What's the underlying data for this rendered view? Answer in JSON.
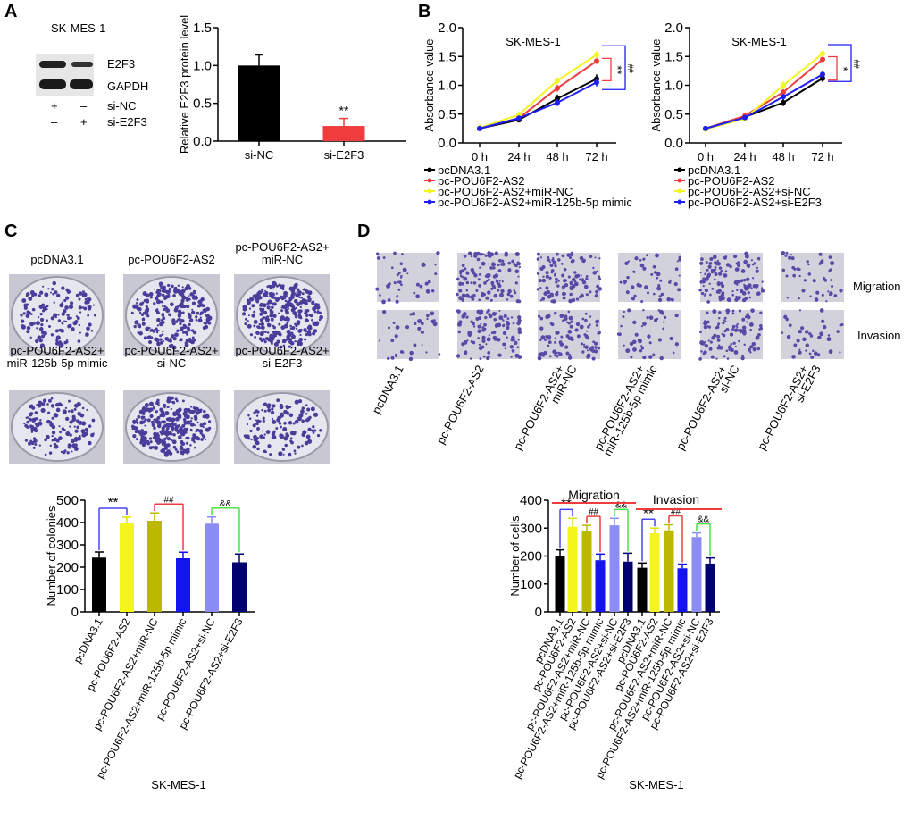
{
  "panels": {
    "a": "A",
    "b": "B",
    "c": "C",
    "d": "D"
  },
  "panel_a": {
    "cell_line": "SK-MES-1",
    "blot_labels": [
      "E2F3",
      "GAPDH"
    ],
    "rows": [
      {
        "label": "si-NC",
        "marks": [
          "+",
          "–"
        ]
      },
      {
        "label": "si-E2F3",
        "marks": [
          "–",
          "+"
        ]
      }
    ]
  },
  "panel_c": {
    "image_labels": [
      [
        "pcDNA3.1"
      ],
      [
        "pc-POU6F2-AS2"
      ],
      [
        "pc-POU6F2-AS2+",
        "miR-NC"
      ],
      [
        "pc-POU6F2-AS2+",
        "miR-125b-5p mimic"
      ],
      [
        "pc-POU6F2-AS2+",
        "si-NC"
      ],
      [
        "pc-POU6F2-AS2+",
        "si-E2F3"
      ]
    ]
  },
  "panel_d": {
    "row_labels": [
      "Migration",
      "Invasion"
    ],
    "col_labels": [
      [
        "pcDNA3.1"
      ],
      [
        "pc-POU6F2-AS2"
      ],
      [
        "pc-POU6F2-AS2+",
        "miR-NC"
      ],
      [
        "pc-POU6F2-AS2+",
        "miR-125b-5p mimic"
      ],
      [
        "pc-POU6F2-AS2+",
        "si-NC"
      ],
      [
        "pc-POU6F2-AS2+",
        "si-E2F3"
      ]
    ]
  },
  "chart_data": [
    {
      "id": "a_bar",
      "type": "bar",
      "ylabel": "Relative E2F3 protein level",
      "categories": [
        "si-NC",
        "si-E2F3"
      ],
      "values": [
        1.0,
        0.2
      ],
      "errors": [
        0.14,
        0.1
      ],
      "colors": [
        "#000000",
        "#f03c3c"
      ],
      "ylim": [
        0,
        1.5
      ],
      "yticks": [
        "0.0",
        "0.5",
        "1.0",
        "1.5"
      ],
      "annotations": [
        {
          "bar": 1,
          "text": "**"
        }
      ]
    },
    {
      "id": "b_line1",
      "type": "line",
      "title": "SK-MES-1",
      "ylabel": "Absorbance value",
      "x": [
        "0 h",
        "24 h",
        "48 h",
        "72 h"
      ],
      "ylim": [
        0,
        2.0
      ],
      "yticks": [
        "0.0",
        "0.5",
        "1.0",
        "1.5",
        "2.0"
      ],
      "legend": "bottom",
      "series": [
        {
          "name": "pcDNA3.1",
          "color": "#000000",
          "values": [
            0.25,
            0.4,
            0.77,
            1.11
          ],
          "errors": [
            0.05,
            0.04,
            0.07,
            0.08
          ]
        },
        {
          "name": "pc-POU6F2-AS2",
          "color": "#f03c3c",
          "values": [
            0.25,
            0.43,
            0.95,
            1.42
          ],
          "errors": [
            0.04,
            0.04,
            0.06,
            0.05
          ]
        },
        {
          "name": "pc-POU6F2-AS2+miR-NC",
          "color": "#f5f51e",
          "values": [
            0.26,
            0.49,
            1.08,
            1.53
          ],
          "errors": [
            0.06,
            0.06,
            0.06,
            0.06
          ]
        },
        {
          "name": "pc-POU6F2-AS2+miR-125b-5p mimic",
          "color": "#1e1ef5",
          "values": [
            0.25,
            0.43,
            0.7,
            1.05
          ],
          "errors": [
            0.04,
            0.04,
            0.06,
            0.07
          ]
        }
      ],
      "significance": [
        {
          "text": "**",
          "color": "#f03c3c"
        },
        {
          "text": "##",
          "color": "#1e1ef5"
        }
      ]
    },
    {
      "id": "b_line2",
      "type": "line",
      "title": "SK-MES-1",
      "ylabel": "Absorbance value",
      "x": [
        "0 h",
        "24 h",
        "48 h",
        "72 h"
      ],
      "ylim": [
        0,
        2.0
      ],
      "yticks": [
        "0.0",
        "0.5",
        "1.0",
        "1.5",
        "2.0"
      ],
      "legend": "bottom",
      "series": [
        {
          "name": "pcDNA3.1",
          "color": "#000000",
          "values": [
            0.25,
            0.45,
            0.7,
            1.12
          ],
          "errors": [
            0.04,
            0.04,
            0.06,
            0.06
          ]
        },
        {
          "name": "pc-POU6F2-AS2",
          "color": "#f03c3c",
          "values": [
            0.25,
            0.47,
            0.88,
            1.45
          ],
          "errors": [
            0.04,
            0.05,
            0.05,
            0.05
          ]
        },
        {
          "name": "pc-POU6F2-AS2+si-NC",
          "color": "#f5f51e",
          "values": [
            0.24,
            0.42,
            1.0,
            1.55
          ],
          "errors": [
            0.05,
            0.05,
            0.07,
            0.06
          ]
        },
        {
          "name": "pc-POU6F2-AS2+si-E2F3",
          "color": "#1e1ef5",
          "values": [
            0.25,
            0.44,
            0.8,
            1.19
          ],
          "errors": [
            0.04,
            0.04,
            0.05,
            0.06
          ]
        }
      ],
      "significance": [
        {
          "text": "*",
          "color": "#f03c3c"
        },
        {
          "text": "##",
          "color": "#1e1ef5"
        }
      ]
    },
    {
      "id": "c_bar",
      "type": "bar",
      "ylabel": "Number of colonies",
      "xlabel": "SK-MES-1",
      "categories": [
        "pcDNA3.1",
        "pc-POU6F2-AS2",
        "pc-POU6F2-AS2+miR-NC",
        "pc-POU6F2-AS2+miR-125b-5p mimic",
        "pc-POU6F2-AS2+si-NC",
        "pc-POU6F2-AS2+si-E2F3"
      ],
      "values": [
        243,
        396,
        408,
        240,
        395,
        222
      ],
      "errors": [
        25,
        28,
        35,
        27,
        30,
        37
      ],
      "colors": [
        "#000000",
        "#f5f51e",
        "#bcb800",
        "#1414f0",
        "#8c8cf5",
        "#000070"
      ],
      "ylim": [
        0,
        500
      ],
      "yticks": [
        "0",
        "100",
        "200",
        "300",
        "400",
        "500"
      ],
      "brackets": [
        {
          "from": 0,
          "to": 1,
          "text": "**",
          "color": "#4646f0"
        },
        {
          "from": 2,
          "to": 3,
          "text": "##",
          "color": "#f03c3c"
        },
        {
          "from": 4,
          "to": 5,
          "text": "&&",
          "color": "#46e646"
        }
      ]
    },
    {
      "id": "d_bar",
      "type": "bar",
      "ylabel": "Number of cells",
      "xlabel": "SK-MES-1",
      "groups": [
        "Migration",
        "Invasion"
      ],
      "categories": [
        "pcDNA3.1",
        "pc-POU6F2-AS2",
        "pc-POU6F2-AS2+miR-NC",
        "pc-POU6F2-AS2+miR-125b-5p mimic",
        "pc-POU6F2-AS2+si-NC",
        "pc-POU6F2-AS2+si-E2F3",
        "pcDNA3.1",
        "pc-POU6F2-AS2",
        "pc-POU6F2-AS2+miR-NC",
        "pc-POU6F2-AS2+miR-125b-5p mimic",
        "pc-POU6F2-AS2+si-NC",
        "pc-POU6F2-AS2+si-E2F3"
      ],
      "values": [
        200,
        305,
        288,
        185,
        310,
        180,
        158,
        282,
        292,
        156,
        268,
        173
      ],
      "errors": [
        22,
        30,
        22,
        22,
        25,
        30,
        17,
        18,
        20,
        15,
        15,
        20
      ],
      "colors": [
        "#000000",
        "#f5f51e",
        "#bcb800",
        "#1414f0",
        "#8c8cf5",
        "#000070",
        "#000000",
        "#f5f51e",
        "#bcb800",
        "#1414f0",
        "#8c8cf5",
        "#000070"
      ],
      "ylim": [
        0,
        400
      ],
      "yticks": [
        "0",
        "100",
        "200",
        "300",
        "400"
      ],
      "brackets": [
        {
          "from": 0,
          "to": 1,
          "text": "**",
          "color": "#4646f0"
        },
        {
          "from": 2,
          "to": 3,
          "text": "##",
          "color": "#f03c3c"
        },
        {
          "from": 4,
          "to": 5,
          "text": "&&",
          "color": "#46e646"
        },
        {
          "from": 6,
          "to": 7,
          "text": "**",
          "color": "#4646f0"
        },
        {
          "from": 8,
          "to": 9,
          "text": "##",
          "color": "#f03c3c"
        },
        {
          "from": 10,
          "to": 11,
          "text": "&&",
          "color": "#46e646"
        }
      ]
    }
  ]
}
